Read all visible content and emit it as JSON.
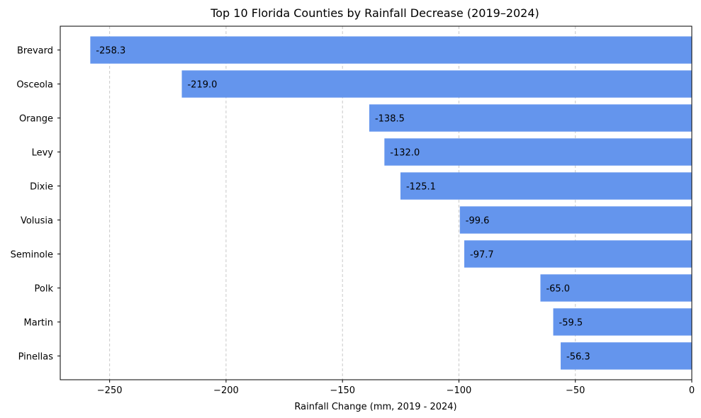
{
  "chart_data": {
    "type": "bar",
    "orientation": "horizontal",
    "title": "Top 10 Florida Counties by Rainfall Decrease (2019–2024)",
    "xlabel": "Rainfall Change (mm, 2019 - 2024)",
    "ylabel": "",
    "categories": [
      "Brevard",
      "Osceola",
      "Orange",
      "Levy",
      "Dixie",
      "Volusia",
      "Seminole",
      "Polk",
      "Martin",
      "Pinellas"
    ],
    "values": [
      -258.3,
      -219.0,
      -138.5,
      -132.0,
      -125.1,
      -99.6,
      -97.7,
      -65.0,
      -59.5,
      -56.3
    ],
    "value_labels": [
      "-258.3",
      "-219.0",
      "-138.5",
      "-132.0",
      "-125.1",
      "-99.6",
      "-97.7",
      "-65.0",
      "-59.5",
      "-56.3"
    ],
    "xlim": [
      -271.2,
      0
    ],
    "xticks": [
      -250,
      -200,
      -150,
      -100,
      -50,
      0
    ],
    "xtick_labels": [
      "−250",
      "−200",
      "−150",
      "−100",
      "−50",
      "0"
    ],
    "grid": "vertical dashed",
    "legend": "none",
    "colors": {
      "bar": "#6495ED",
      "grid": "#c8c8c8"
    }
  }
}
